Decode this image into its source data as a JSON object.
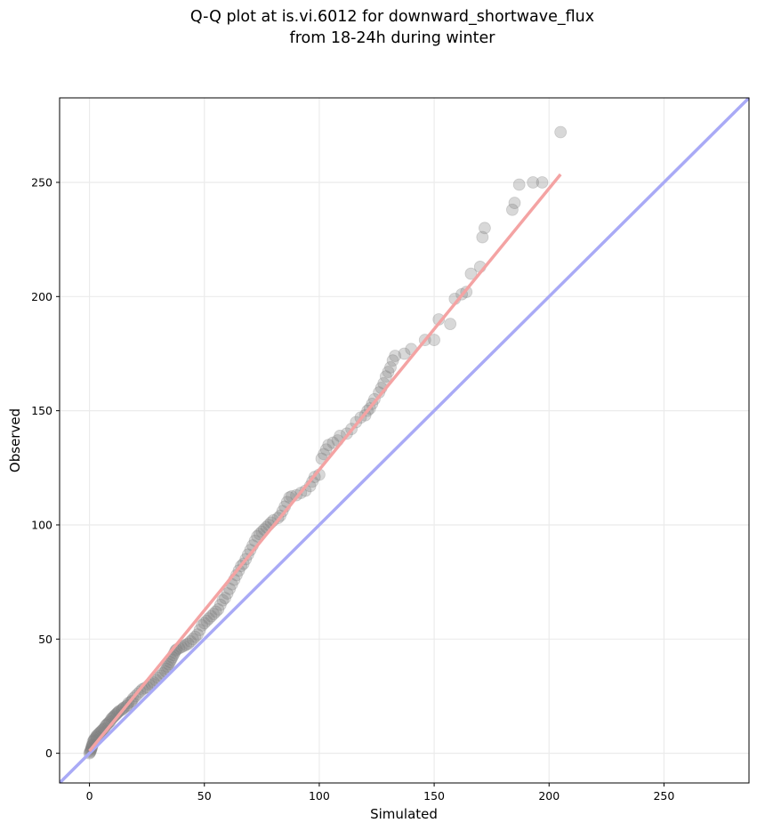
{
  "chart_data": {
    "type": "scatter",
    "title": [
      "Q-Q plot at is.vi.6012 for downward_shortwave_flux",
      "from 18-24h during winter"
    ],
    "xlabel": "Simulated",
    "ylabel": "Observed",
    "xlim": [
      -13,
      287
    ],
    "ylim": [
      -13,
      287
    ],
    "xticks": [
      0,
      50,
      100,
      150,
      200,
      250
    ],
    "yticks": [
      0,
      50,
      100,
      150,
      200,
      250
    ],
    "grid": true,
    "points": [
      [
        0,
        0
      ],
      [
        0.3,
        0.5
      ],
      [
        0.5,
        1
      ],
      [
        0.6,
        1.5
      ],
      [
        0.8,
        2
      ],
      [
        1,
        2.5
      ],
      [
        1,
        3
      ],
      [
        1.2,
        3.5
      ],
      [
        1.5,
        4
      ],
      [
        1.5,
        5
      ],
      [
        2,
        5.5
      ],
      [
        2,
        6
      ],
      [
        2.5,
        6.5
      ],
      [
        3,
        7
      ],
      [
        3,
        7.5
      ],
      [
        3.5,
        8
      ],
      [
        4,
        8.5
      ],
      [
        4.5,
        9
      ],
      [
        5,
        9.5
      ],
      [
        5.5,
        10
      ],
      [
        6,
        10.5
      ],
      [
        6.5,
        11
      ],
      [
        7,
        12
      ],
      [
        7.5,
        12.5
      ],
      [
        8,
        13
      ],
      [
        8.5,
        13.5
      ],
      [
        9,
        14
      ],
      [
        9.5,
        15
      ],
      [
        10,
        15.5
      ],
      [
        10.5,
        16
      ],
      [
        11,
        16.5
      ],
      [
        11.5,
        17
      ],
      [
        12,
        17.5
      ],
      [
        12.5,
        18
      ],
      [
        13,
        18.5
      ],
      [
        14,
        19
      ],
      [
        14.5,
        19.5
      ],
      [
        15,
        20
      ],
      [
        16,
        20.5
      ],
      [
        16.5,
        21
      ],
      [
        17,
        22
      ],
      [
        18,
        22.5
      ],
      [
        18.5,
        23
      ],
      [
        19,
        24
      ],
      [
        20,
        25
      ],
      [
        21,
        26
      ],
      [
        22,
        27
      ],
      [
        23,
        28
      ],
      [
        24,
        28.5
      ],
      [
        25,
        29
      ],
      [
        26,
        30
      ],
      [
        27,
        30.5
      ],
      [
        28,
        31
      ],
      [
        29,
        32
      ],
      [
        30,
        33
      ],
      [
        31,
        34
      ],
      [
        32,
        35
      ],
      [
        33,
        36
      ],
      [
        33.5,
        37
      ],
      [
        34,
        38
      ],
      [
        34.5,
        39
      ],
      [
        35,
        40
      ],
      [
        35.5,
        41
      ],
      [
        36,
        42
      ],
      [
        36.5,
        43
      ],
      [
        37,
        44
      ],
      [
        37.5,
        45
      ],
      [
        38,
        45.5
      ],
      [
        39,
        46
      ],
      [
        40,
        46.5
      ],
      [
        41,
        47
      ],
      [
        42,
        47.5
      ],
      [
        43,
        48
      ],
      [
        44,
        49
      ],
      [
        45,
        50
      ],
      [
        46,
        51
      ],
      [
        47,
        52
      ],
      [
        48,
        54
      ],
      [
        49,
        56
      ],
      [
        50,
        57
      ],
      [
        51,
        58
      ],
      [
        52,
        59
      ],
      [
        53,
        60
      ],
      [
        54,
        61
      ],
      [
        55,
        62
      ],
      [
        56,
        63
      ],
      [
        57,
        65
      ],
      [
        58,
        67
      ],
      [
        59,
        68
      ],
      [
        60,
        70
      ],
      [
        61,
        72
      ],
      [
        62,
        74
      ],
      [
        63,
        76
      ],
      [
        64,
        78
      ],
      [
        65,
        80
      ],
      [
        66,
        82
      ],
      [
        67,
        83
      ],
      [
        68,
        85
      ],
      [
        69,
        87
      ],
      [
        70,
        89
      ],
      [
        71,
        91
      ],
      [
        72,
        93
      ],
      [
        73,
        95
      ],
      [
        74,
        96
      ],
      [
        75,
        97
      ],
      [
        76,
        98
      ],
      [
        77,
        99
      ],
      [
        78,
        100
      ],
      [
        79,
        101
      ],
      [
        80,
        102
      ],
      [
        82,
        103
      ],
      [
        83,
        104
      ],
      [
        84,
        106
      ],
      [
        85,
        108
      ],
      [
        86,
        110
      ],
      [
        87,
        112
      ],
      [
        88,
        112.5
      ],
      [
        90,
        113
      ],
      [
        92,
        114
      ],
      [
        94,
        115
      ],
      [
        96,
        117
      ],
      [
        97,
        119
      ],
      [
        98,
        121
      ],
      [
        100,
        122
      ],
      [
        101,
        129
      ],
      [
        102,
        131
      ],
      [
        103,
        133
      ],
      [
        104,
        135
      ],
      [
        106,
        136
      ],
      [
        108,
        137
      ],
      [
        109,
        139
      ],
      [
        112,
        140
      ],
      [
        114,
        142
      ],
      [
        116,
        145
      ],
      [
        118,
        147
      ],
      [
        120,
        148
      ],
      [
        121,
        150
      ],
      [
        122,
        151
      ],
      [
        123,
        153
      ],
      [
        124,
        155
      ],
      [
        126,
        158
      ],
      [
        127,
        160
      ],
      [
        128,
        162
      ],
      [
        129,
        165
      ],
      [
        130,
        167
      ],
      [
        131,
        169
      ],
      [
        132,
        172
      ],
      [
        133,
        174
      ],
      [
        137,
        175
      ],
      [
        140,
        177
      ],
      [
        146,
        181
      ],
      [
        150,
        181
      ],
      [
        152,
        190
      ],
      [
        157,
        188
      ],
      [
        159,
        199
      ],
      [
        162,
        201
      ],
      [
        164,
        202
      ],
      [
        166,
        210
      ],
      [
        170,
        213
      ],
      [
        171,
        226
      ],
      [
        172,
        230
      ],
      [
        184,
        238
      ],
      [
        185,
        241
      ],
      [
        187,
        249
      ],
      [
        193,
        250
      ],
      [
        197,
        250
      ],
      [
        205,
        272
      ]
    ],
    "fit_line": {
      "x": [
        0,
        205
      ],
      "y": [
        1,
        253.5
      ],
      "color": "#f4a3a3"
    },
    "identity_line": {
      "color": "#a9aaf6"
    },
    "point_color": "#7f7f7f"
  }
}
